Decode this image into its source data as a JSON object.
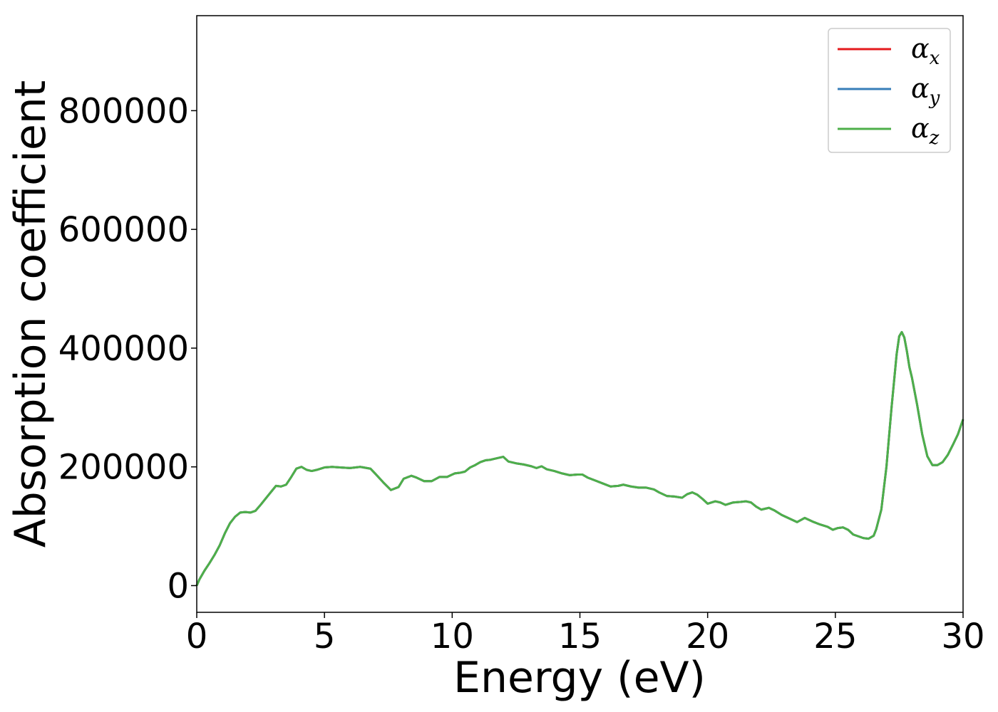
{
  "chart_data": {
    "type": "line",
    "xlabel": "Energy (eV)",
    "ylabel": "Absorption coefficient",
    "xlim": [
      0,
      30
    ],
    "ylim": [
      -45000,
      960000
    ],
    "xticks": [
      0,
      5,
      10,
      15,
      20,
      25,
      30
    ],
    "yticks": [
      0,
      200000,
      400000,
      600000,
      800000
    ],
    "grid": false,
    "legend_position": "top-right",
    "x": [
      0.0,
      0.1,
      0.3,
      0.5,
      0.7,
      0.9,
      1.1,
      1.3,
      1.5,
      1.7,
      1.9,
      2.1,
      2.3,
      2.5,
      2.8,
      3.1,
      3.3,
      3.5,
      3.7,
      3.9,
      4.1,
      4.3,
      4.5,
      4.7,
      5.0,
      5.3,
      5.6,
      6.0,
      6.4,
      6.8,
      7.0,
      7.3,
      7.6,
      7.9,
      8.1,
      8.4,
      8.6,
      8.9,
      9.2,
      9.5,
      9.8,
      10.1,
      10.3,
      10.5,
      10.7,
      10.9,
      11.1,
      11.3,
      11.5,
      11.8,
      12.0,
      12.2,
      12.5,
      12.8,
      13.1,
      13.3,
      13.5,
      13.7,
      14.0,
      14.3,
      14.6,
      14.9,
      15.1,
      15.3,
      15.6,
      15.9,
      16.2,
      16.5,
      16.7,
      17.0,
      17.3,
      17.6,
      17.9,
      18.1,
      18.4,
      18.7,
      19.0,
      19.2,
      19.4,
      19.6,
      19.8,
      20.0,
      20.3,
      20.5,
      20.7,
      21.0,
      21.3,
      21.5,
      21.7,
      21.9,
      22.1,
      22.4,
      22.6,
      22.9,
      23.2,
      23.5,
      23.8,
      24.1,
      24.4,
      24.7,
      24.9,
      25.1,
      25.3,
      25.5,
      25.7,
      25.9,
      26.1,
      26.3,
      26.5,
      26.6,
      26.8,
      27.0,
      27.2,
      27.4,
      27.5,
      27.6,
      27.7,
      27.8,
      27.9,
      28.0,
      28.2,
      28.4,
      28.6,
      28.8,
      29.0,
      29.2,
      29.4,
      29.6,
      29.8,
      30.0
    ],
    "series": [
      {
        "name": "α_x",
        "color": "#e41a1c",
        "values": [
          0,
          10000,
          25000,
          38000,
          52000,
          68000,
          88000,
          105000,
          116000,
          123000,
          124000,
          123000,
          126000,
          136000,
          152000,
          168000,
          167000,
          170000,
          183000,
          197000,
          200000,
          195000,
          193000,
          195000,
          199000,
          200000,
          199000,
          198000,
          200000,
          197000,
          188000,
          174000,
          161000,
          166000,
          180000,
          185000,
          182000,
          176000,
          176000,
          183000,
          183000,
          189000,
          190000,
          192000,
          199000,
          203000,
          208000,
          211000,
          212000,
          215000,
          217000,
          209000,
          206000,
          204000,
          201000,
          198000,
          201000,
          196000,
          193000,
          189000,
          186000,
          187000,
          187000,
          182000,
          177000,
          172000,
          167000,
          168000,
          170000,
          167000,
          165000,
          165000,
          162000,
          157000,
          151000,
          150000,
          148000,
          154000,
          157000,
          153000,
          146000,
          138000,
          142000,
          140000,
          136000,
          140000,
          141000,
          142000,
          140000,
          133000,
          128000,
          131000,
          127000,
          119000,
          113000,
          107000,
          114000,
          108000,
          103000,
          99000,
          94000,
          97000,
          98000,
          94000,
          86000,
          83000,
          80000,
          79000,
          84000,
          95000,
          128000,
          200000,
          300000,
          390000,
          420000,
          427000,
          418000,
          395000,
          368000,
          350000,
          305000,
          255000,
          218000,
          203000,
          203000,
          208000,
          220000,
          237000,
          255000,
          280000
        ]
      },
      {
        "name": "α_y",
        "color": "#377eb8",
        "values": [
          0,
          10000,
          25000,
          38000,
          52000,
          68000,
          88000,
          105000,
          116000,
          123000,
          124000,
          123000,
          126000,
          136000,
          152000,
          168000,
          167000,
          170000,
          183000,
          197000,
          200000,
          195000,
          193000,
          195000,
          199000,
          200000,
          199000,
          198000,
          200000,
          197000,
          188000,
          174000,
          161000,
          166000,
          180000,
          185000,
          182000,
          176000,
          176000,
          183000,
          183000,
          189000,
          190000,
          192000,
          199000,
          203000,
          208000,
          211000,
          212000,
          215000,
          217000,
          209000,
          206000,
          204000,
          201000,
          198000,
          201000,
          196000,
          193000,
          189000,
          186000,
          187000,
          187000,
          182000,
          177000,
          172000,
          167000,
          168000,
          170000,
          167000,
          165000,
          165000,
          162000,
          157000,
          151000,
          150000,
          148000,
          154000,
          157000,
          153000,
          146000,
          138000,
          142000,
          140000,
          136000,
          140000,
          141000,
          142000,
          140000,
          133000,
          128000,
          131000,
          127000,
          119000,
          113000,
          107000,
          114000,
          108000,
          103000,
          99000,
          94000,
          97000,
          98000,
          94000,
          86000,
          83000,
          80000,
          79000,
          84000,
          95000,
          128000,
          200000,
          300000,
          390000,
          420000,
          427000,
          418000,
          395000,
          368000,
          350000,
          305000,
          255000,
          218000,
          203000,
          203000,
          208000,
          220000,
          237000,
          255000,
          280000
        ]
      },
      {
        "name": "α_z",
        "color": "#4daf4a",
        "values": [
          0,
          10000,
          25000,
          38000,
          52000,
          68000,
          88000,
          105000,
          116000,
          123000,
          124000,
          123000,
          126000,
          136000,
          152000,
          168000,
          167000,
          170000,
          183000,
          197000,
          200000,
          195000,
          193000,
          195000,
          199000,
          200000,
          199000,
          198000,
          200000,
          197000,
          188000,
          174000,
          161000,
          166000,
          180000,
          185000,
          182000,
          176000,
          176000,
          183000,
          183000,
          189000,
          190000,
          192000,
          199000,
          203000,
          208000,
          211000,
          212000,
          215000,
          217000,
          209000,
          206000,
          204000,
          201000,
          198000,
          201000,
          196000,
          193000,
          189000,
          186000,
          187000,
          187000,
          182000,
          177000,
          172000,
          167000,
          168000,
          170000,
          167000,
          165000,
          165000,
          162000,
          157000,
          151000,
          150000,
          148000,
          154000,
          157000,
          153000,
          146000,
          138000,
          142000,
          140000,
          136000,
          140000,
          141000,
          142000,
          140000,
          133000,
          128000,
          131000,
          127000,
          119000,
          113000,
          107000,
          114000,
          108000,
          103000,
          99000,
          94000,
          97000,
          98000,
          94000,
          86000,
          83000,
          80000,
          79000,
          84000,
          95000,
          128000,
          200000,
          300000,
          390000,
          420000,
          427000,
          418000,
          395000,
          368000,
          350000,
          305000,
          255000,
          218000,
          203000,
          203000,
          208000,
          220000,
          237000,
          255000,
          280000
        ]
      }
    ]
  }
}
